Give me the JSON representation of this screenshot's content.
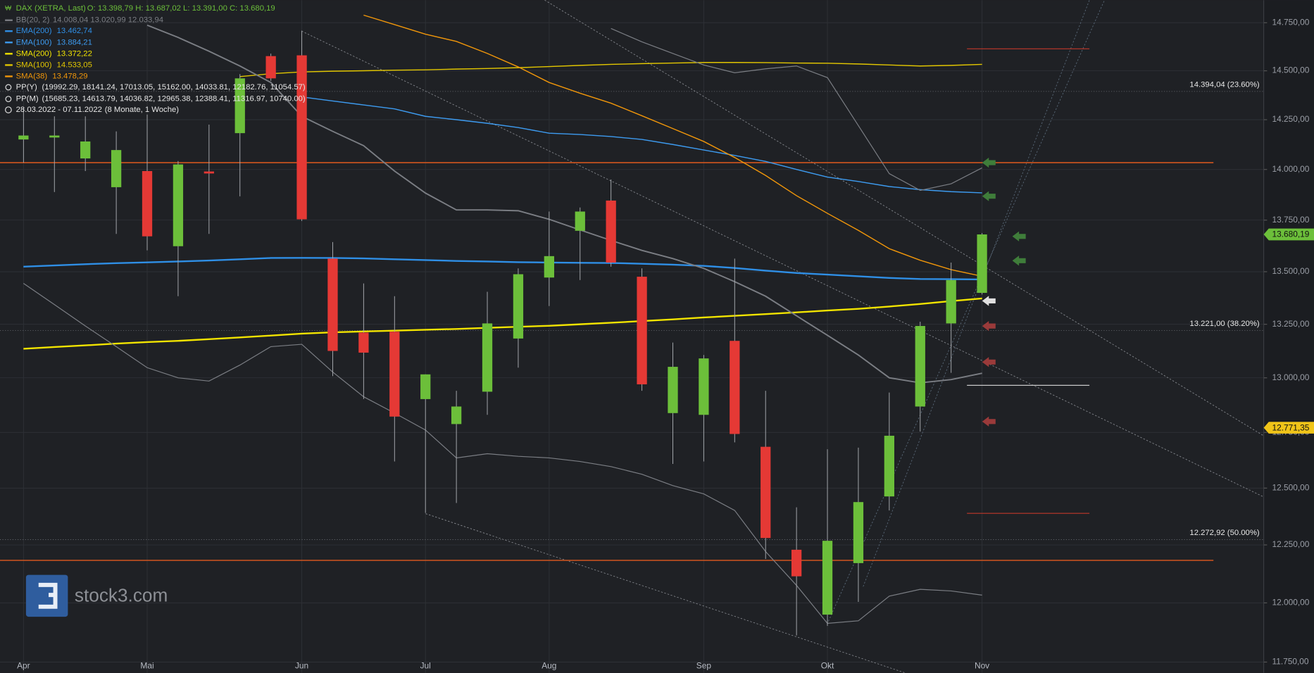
{
  "chart_data": {
    "type": "candlestick",
    "header": {
      "symbol": "DAX (XETRA, Last)",
      "ohlc": "O: 13.398,79  H: 13.687,02  L: 13.391,00  C: 13.680,19",
      "pp_year_name": "PP(Y)",
      "pp_year": "(19992.29, 18141.24, 17013.05, 15162.00, 14033.81, 12182.76, 11054.57)",
      "pp_month_name": "PP(M)",
      "pp_month": "(15685.23, 14613.79, 14036.82, 12965.38, 12388.41, 11316.97, 10740.00)",
      "range": "28.03.2022 - 07.11.2022",
      "period": "(8 Monate, 1 Woche)"
    },
    "bb": {
      "name": "BB(20, 2)",
      "legend_value": "14.008,04  13.020,99  12.033,94",
      "color": "#7b7e84"
    },
    "logo_text": "stock3.com",
    "up_color": "#6cbf3a",
    "down_color": "#e53935",
    "open": [
      14150,
      14160,
      14055,
      13912,
      13992,
      13623,
      13990,
      14182,
      14576,
      14580,
      13563,
      13211,
      13215,
      12902,
      12788,
      12936,
      13183,
      13472,
      13698,
      13846,
      13476,
      12838,
      12830,
      13172,
      12685,
      12229,
      11950,
      12171,
      12463,
      12868,
      13254,
      13398.79
    ],
    "high": [
      14310,
      14267,
      14267,
      14191,
      14276,
      14042,
      14225,
      14483,
      14589,
      14708,
      13643,
      13444,
      13383,
      13016,
      12940,
      13404,
      13516,
      13792,
      13812,
      13950,
      13516,
      13164,
      13106,
      13563,
      12940,
      12415,
      12674,
      12681,
      12932,
      13262,
      13544,
      13687.02
    ],
    "low": [
      14034,
      13888,
      13992,
      13683,
      13603,
      13383,
      13683,
      13867,
      14448,
      13746,
      13008,
      12902,
      12619,
      12390,
      12434,
      12830,
      13047,
      13336,
      13460,
      13524,
      12940,
      12608,
      12619,
      12705,
      12189,
      11862,
      11902,
      12004,
      12401,
      12754,
      13023,
      13391.0
    ],
    "close": [
      14170,
      14170,
      14140,
      14097,
      13671,
      14025,
      13980,
      14461,
      14461,
      13754,
      13125,
      13117,
      12822,
      13016,
      12868,
      13254,
      13488,
      13575,
      13792,
      13544,
      12970,
      13051,
      13090,
      12743,
      12280,
      12114,
      12268,
      12438,
      12735,
      13242,
      13460,
      13680.19
    ],
    "series": [
      {
        "name": "EMA(200)",
        "legend_value": "13.462,74",
        "color": "#2f8fe6",
        "width": 2,
        "values": [
          13524,
          13530,
          13536,
          13541,
          13545,
          13549,
          13554,
          13560,
          13566,
          13567,
          13566,
          13564,
          13560,
          13556,
          13552,
          13549,
          13546,
          13544,
          13543,
          13542,
          13538,
          13534,
          13528,
          13518,
          13505,
          13494,
          13486,
          13478,
          13470,
          13465,
          13464,
          13463
        ]
      },
      {
        "name": "EMA(100)",
        "legend_value": "13.884,21",
        "color": "#3d9bf0",
        "width": 1.2,
        "values": [
          null,
          null,
          null,
          null,
          null,
          null,
          null,
          null,
          null,
          14366,
          14345,
          14325,
          14305,
          14267,
          14250,
          14232,
          14210,
          14182,
          14175,
          14165,
          14150,
          14125,
          14097,
          14070,
          14040,
          14000,
          13962,
          13940,
          13915,
          13900,
          13890,
          13884
        ]
      },
      {
        "name": "SMA(200)",
        "legend_value": "13.372,22",
        "color": "#f2e400",
        "width": 2,
        "values": [
          13135,
          13143,
          13151,
          13159,
          13166,
          13172,
          13180,
          13188,
          13197,
          13206,
          13212,
          13216,
          13220,
          13224,
          13228,
          13233,
          13238,
          13243,
          13250,
          13257,
          13265,
          13273,
          13282,
          13290,
          13298,
          13306,
          13315,
          13323,
          13334,
          13346,
          13360,
          13372
        ]
      },
      {
        "name": "SMA(100)",
        "legend_value": "14.533,05",
        "color": "#e2c600",
        "width": 1.2,
        "values": [
          null,
          null,
          null,
          null,
          null,
          null,
          null,
          14470,
          14485,
          14494,
          14498,
          14500,
          14503,
          14505,
          14509,
          14512,
          14516,
          14522,
          14528,
          14533,
          14537,
          14540,
          14543,
          14543,
          14542,
          14540,
          14539,
          14535,
          14530,
          14525,
          14528,
          14533
        ]
      },
      {
        "name": "SMA(38)",
        "legend_value": "13.478,29",
        "color": "#f0960a",
        "width": 1.2,
        "values": [
          null,
          null,
          null,
          null,
          null,
          null,
          null,
          null,
          null,
          null,
          null,
          14790,
          14740,
          14690,
          14652,
          14590,
          14520,
          14440,
          14385,
          14334,
          14270,
          14205,
          14140,
          14060,
          13970,
          13870,
          13783,
          13700,
          13611,
          13555,
          13510,
          13478
        ]
      },
      {
        "name": "BB upper",
        "color": "#7b7e84",
        "width": 1,
        "axis": "bb",
        "values": [
          null,
          null,
          null,
          null,
          null,
          null,
          null,
          null,
          null,
          null,
          null,
          null,
          null,
          null,
          null,
          null,
          null,
          null,
          null,
          14720,
          14650,
          14590,
          14530,
          14490,
          14510,
          14525,
          14465,
          14220,
          13979,
          13896,
          13929,
          14008
        ]
      },
      {
        "name": "BB middle",
        "color": "#7b7e84",
        "width": 1.6,
        "axis": "bb",
        "values": [
          null,
          null,
          null,
          null,
          14737,
          14673,
          14601,
          14525,
          14440,
          14267,
          14191,
          14119,
          13992,
          13883,
          13800,
          13800,
          13796,
          13754,
          13702,
          13651,
          13603,
          13563,
          13516,
          13452,
          13383,
          13290,
          13198,
          13106,
          13000,
          12977,
          12992,
          13021
        ]
      },
      {
        "name": "BB lower",
        "color": "#7b7e84",
        "width": 1,
        "axis": "bb",
        "values": [
          13444,
          13343,
          13242,
          13145,
          13047,
          13000,
          12985,
          13059,
          13145,
          13156,
          13027,
          12913,
          12838,
          12761,
          12635,
          12654,
          12642,
          12635,
          12619,
          12596,
          12562,
          12511,
          12474,
          12401,
          12221,
          12075,
          11913,
          11924,
          12029,
          12058,
          12051,
          12033
        ]
      }
    ],
    "pivot_lines": [
      {
        "value": 14033.81,
        "color": "#d2561e",
        "span": "full"
      },
      {
        "value": 12182.76,
        "color": "#d2561e",
        "span": "full"
      },
      {
        "value": 14613.79,
        "color": "#c0392b",
        "span": "short"
      },
      {
        "value": 12965.38,
        "color": "#c8c8c8",
        "span": "short"
      },
      {
        "value": 12388.41,
        "color": "#c0392b",
        "span": "short"
      }
    ],
    "levels": [
      {
        "value": 14394.04,
        "label": "14.394,04 (23.60%)"
      },
      {
        "value": 13221.0,
        "label": "13.221,00 (38.20%)"
      },
      {
        "value": 12272.92,
        "label": "12.272,92 (50.00%)"
      }
    ],
    "price_tags": [
      {
        "value": 13680.19,
        "label": "13.680,19",
        "color": "#6cbf3a"
      },
      {
        "value": 12771.35,
        "label": "12.771,35",
        "color": "#f0c419"
      }
    ],
    "log_scale": true,
    "grid": true,
    "ylim": [
      11705,
      14869
    ],
    "yticks": [
      {
        "value": 11750,
        "label": "11.750,00"
      },
      {
        "value": 12000,
        "label": "12.000,00"
      },
      {
        "value": 12250,
        "label": "12.250,00"
      },
      {
        "value": 12500,
        "label": "12.500,00"
      },
      {
        "value": 12750,
        "label": "12.750,00"
      },
      {
        "value": 13000,
        "label": "13.000,00"
      },
      {
        "value": 13250,
        "label": "13.250,00"
      },
      {
        "value": 13500,
        "label": "13.500,00"
      },
      {
        "value": 13750,
        "label": "13.750,00"
      },
      {
        "value": 14000,
        "label": "14.000,00"
      },
      {
        "value": 14250,
        "label": "14.250,00"
      },
      {
        "value": 14500,
        "label": "14.500,00"
      },
      {
        "value": 14750,
        "label": "14.750,00"
      }
    ],
    "xlim": [
      -0.76,
      40.11
    ],
    "xticks": [
      {
        "value": 0,
        "label": "Apr"
      },
      {
        "value": 4,
        "label": "Mai"
      },
      {
        "value": 9,
        "label": "Jun"
      },
      {
        "value": 13,
        "label": "Jul"
      },
      {
        "value": 17,
        "label": "Aug"
      },
      {
        "value": 22,
        "label": "Sep"
      },
      {
        "value": 26,
        "label": "Okt"
      },
      {
        "value": 31,
        "label": "Nov"
      }
    ]
  }
}
